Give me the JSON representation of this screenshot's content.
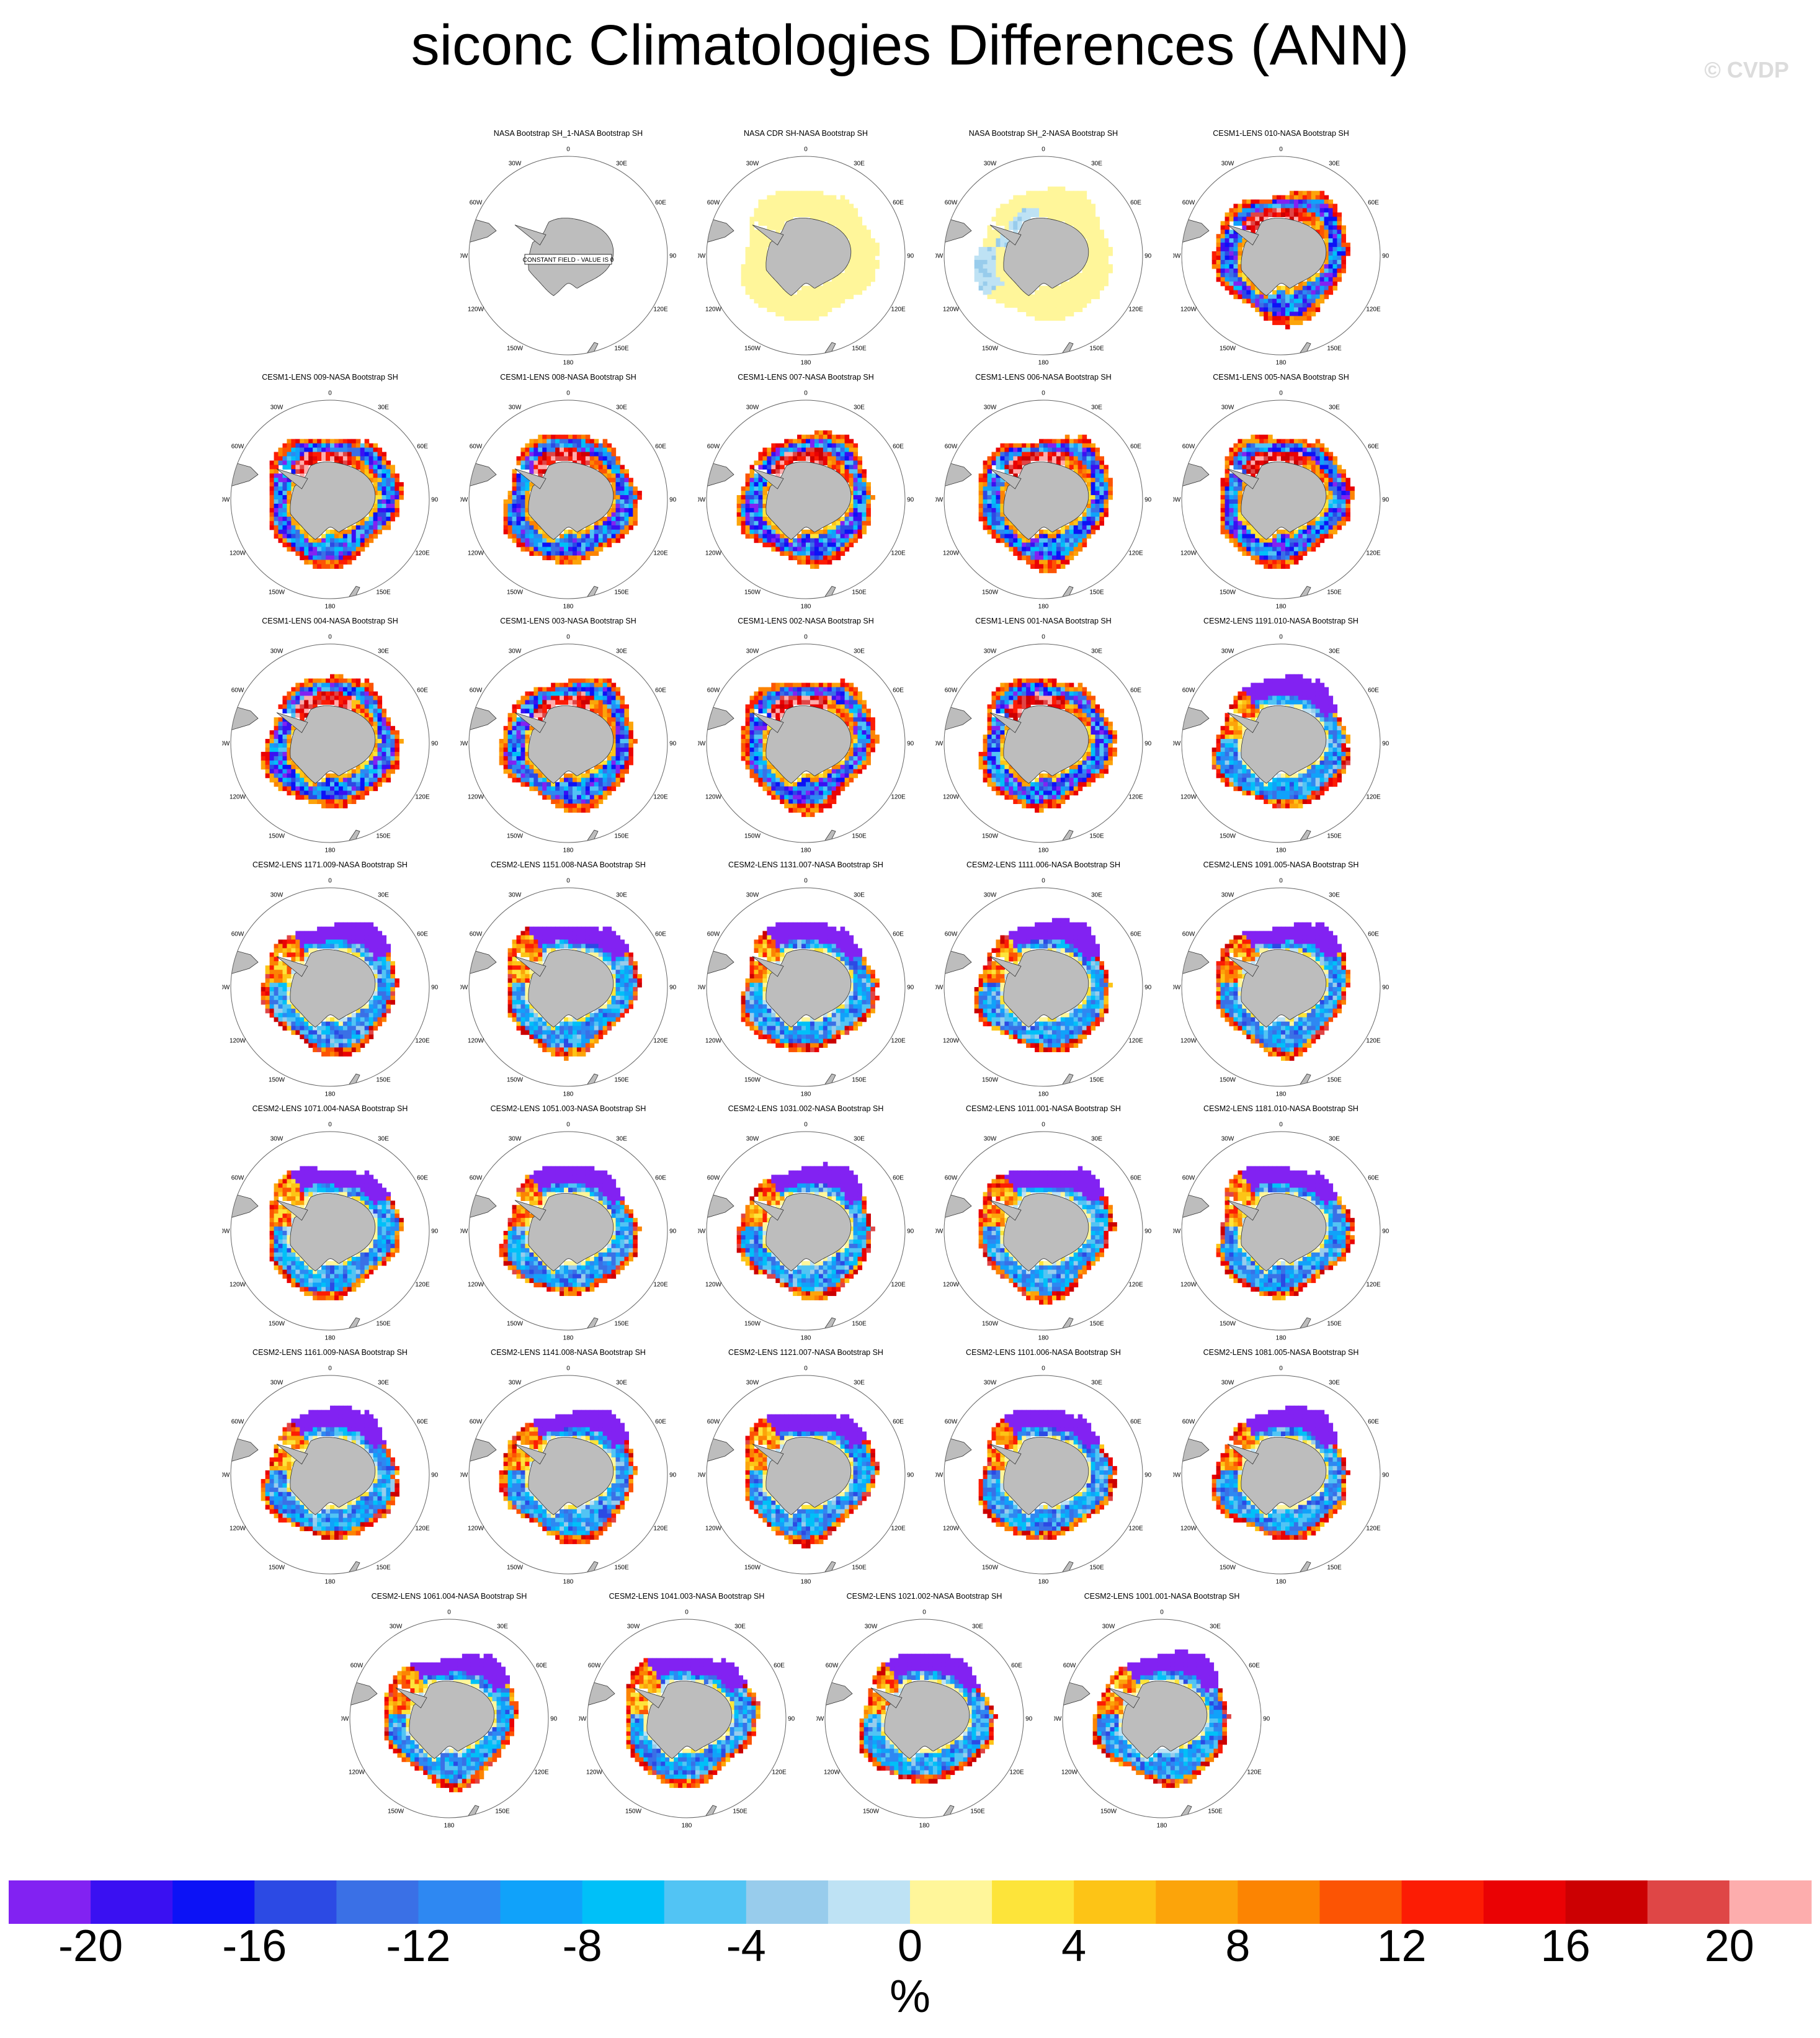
{
  "title": "siconc Climatologies Differences (ANN)",
  "watermark": "© CVDP",
  "constant_field_note": "CONSTANT FIELD - VALUE IS 0",
  "map_labels": {
    "lon_top": "0",
    "lon_bottom": "180",
    "lon_30w": "30W",
    "lon_30e": "30E",
    "lon_60w": "60W",
    "lon_60e": "60E",
    "lon_90w": "90W",
    "lon_90e": "90E",
    "lon_120w": "120W",
    "lon_120e": "120E",
    "lon_150w": "150W",
    "lon_150e": "150E"
  },
  "colors": {
    "land": "#bdbdbd",
    "colorbar": [
      "#8222f2",
      "#3a10f2",
      "#0c12f6",
      "#2c4ae4",
      "#3a70e6",
      "#2e88f2",
      "#10a2fa",
      "#00c0f8",
      "#52c4f4",
      "#98ccec",
      "#bee2f4",
      "#fff69a",
      "#fde43a",
      "#fdc416",
      "#fca40a",
      "#fc8402",
      "#fc5404",
      "#fc1c04",
      "#ea0204",
      "#cc0002",
      "#df4646",
      "#fdadad"
    ]
  },
  "chart_data": {
    "type": "heatmap",
    "title": "siconc Climatologies Differences (ANN)",
    "unit": "%",
    "colorbar_ticks": [
      "-20",
      "-16",
      "-12",
      "-8",
      "-4",
      "0",
      "4",
      "8",
      "12",
      "16",
      "20"
    ],
    "colorbar_levels": [
      -22,
      -20,
      -18,
      -16,
      -14,
      -12,
      -10,
      -8,
      -6,
      -4,
      -2,
      0,
      2,
      4,
      6,
      8,
      10,
      12,
      14,
      16,
      18,
      20,
      22
    ],
    "panels": [
      {
        "title": "NASA Bootstrap SH_1-NASA Bootstrap SH",
        "pattern": "zero"
      },
      {
        "title": "NASA CDR SH-NASA Bootstrap SH",
        "pattern": "cdr"
      },
      {
        "title": "NASA Bootstrap SH_2-NASA Bootstrap SH",
        "pattern": "bs2"
      },
      {
        "title": "CESM1-LENS 010-NASA Bootstrap SH",
        "pattern": "cesm1"
      },
      {
        "title": "CESM1-LENS 009-NASA Bootstrap SH",
        "pattern": "cesm1"
      },
      {
        "title": "CESM1-LENS 008-NASA Bootstrap SH",
        "pattern": "cesm1"
      },
      {
        "title": "CESM1-LENS 007-NASA Bootstrap SH",
        "pattern": "cesm1"
      },
      {
        "title": "CESM1-LENS 006-NASA Bootstrap SH",
        "pattern": "cesm1"
      },
      {
        "title": "CESM1-LENS 005-NASA Bootstrap SH",
        "pattern": "cesm1"
      },
      {
        "title": "CESM1-LENS 004-NASA Bootstrap SH",
        "pattern": "cesm1"
      },
      {
        "title": "CESM1-LENS 003-NASA Bootstrap SH",
        "pattern": "cesm1"
      },
      {
        "title": "CESM1-LENS 002-NASA Bootstrap SH",
        "pattern": "cesm1"
      },
      {
        "title": "CESM1-LENS 001-NASA Bootstrap SH",
        "pattern": "cesm1"
      },
      {
        "title": "CESM2-LENS 1191.010-NASA Bootstrap SH",
        "pattern": "cesm2"
      },
      {
        "title": "CESM2-LENS 1171.009-NASA Bootstrap SH",
        "pattern": "cesm2"
      },
      {
        "title": "CESM2-LENS 1151.008-NASA Bootstrap SH",
        "pattern": "cesm2"
      },
      {
        "title": "CESM2-LENS 1131.007-NASA Bootstrap SH",
        "pattern": "cesm2"
      },
      {
        "title": "CESM2-LENS 1111.006-NASA Bootstrap SH",
        "pattern": "cesm2"
      },
      {
        "title": "CESM2-LENS 1091.005-NASA Bootstrap SH",
        "pattern": "cesm2"
      },
      {
        "title": "CESM2-LENS 1071.004-NASA Bootstrap SH",
        "pattern": "cesm2"
      },
      {
        "title": "CESM2-LENS 1051.003-NASA Bootstrap SH",
        "pattern": "cesm2"
      },
      {
        "title": "CESM2-LENS 1031.002-NASA Bootstrap SH",
        "pattern": "cesm2"
      },
      {
        "title": "CESM2-LENS 1011.001-NASA Bootstrap SH",
        "pattern": "cesm2"
      },
      {
        "title": "CESM2-LENS 1181.010-NASA Bootstrap SH",
        "pattern": "cesm2"
      },
      {
        "title": "CESM2-LENS 1161.009-NASA Bootstrap SH",
        "pattern": "cesm2"
      },
      {
        "title": "CESM2-LENS 1141.008-NASA Bootstrap SH",
        "pattern": "cesm2"
      },
      {
        "title": "CESM2-LENS 1121.007-NASA Bootstrap SH",
        "pattern": "cesm2"
      },
      {
        "title": "CESM2-LENS 1101.006-NASA Bootstrap SH",
        "pattern": "cesm2"
      },
      {
        "title": "CESM2-LENS 1081.005-NASA Bootstrap SH",
        "pattern": "cesm2"
      },
      {
        "title": "CESM2-LENS 1061.004-NASA Bootstrap SH",
        "pattern": "cesm2"
      },
      {
        "title": "CESM2-LENS 1041.003-NASA Bootstrap SH",
        "pattern": "cesm2"
      },
      {
        "title": "CESM2-LENS 1021.002-NASA Bootstrap SH",
        "pattern": "cesm2"
      },
      {
        "title": "CESM2-LENS 1001.001-NASA Bootstrap SH",
        "pattern": "cesm2"
      }
    ]
  }
}
